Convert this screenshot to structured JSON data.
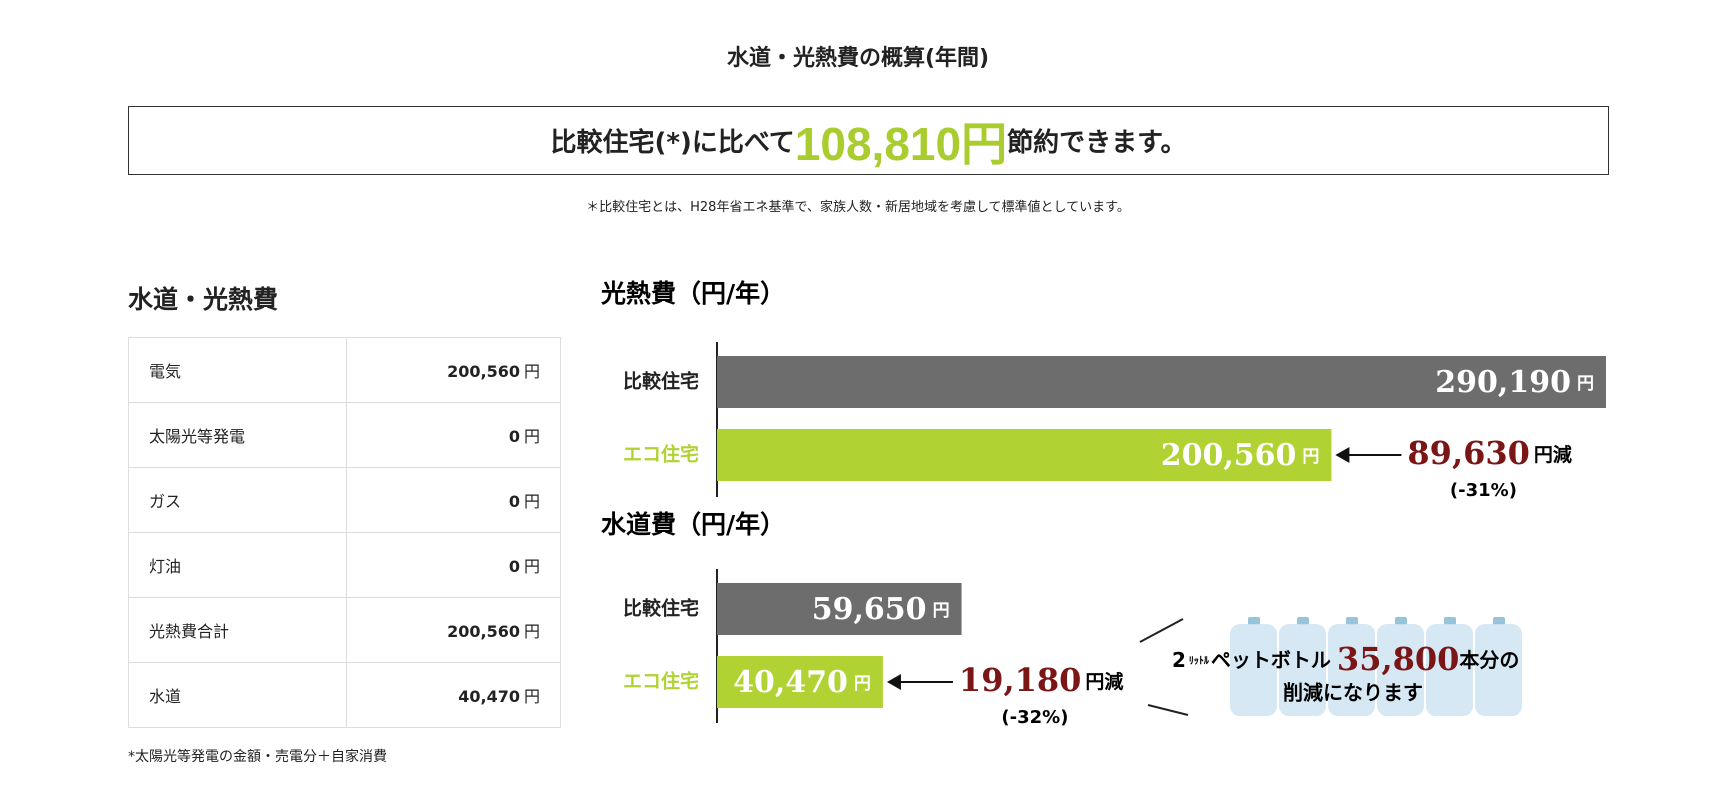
{
  "header": {
    "title": "水道・光熱費の概算(年間)",
    "headline": {
      "before": "比較住宅(*)に比べて",
      "amount": "108,810円",
      "after": "節約できます。"
    },
    "note": "＊比較住宅とは、H28年省エネ基準で、家族人数・新居地域を考慮して標準値としています。"
  },
  "table": {
    "title": "水道・光熱費",
    "unit": "円",
    "rows": [
      [
        "電気",
        "200,560"
      ],
      [
        "太陽光等発電",
        "0"
      ],
      [
        "ガス",
        "0"
      ],
      [
        "灯油",
        "0"
      ],
      [
        "光熱費合計",
        "200,560"
      ],
      [
        "水道",
        "40,470"
      ]
    ],
    "footnote": "*太陽光等発電の金額・売電分＋自家消費"
  },
  "charts": [
    {
      "type": "bar",
      "title": "光熱費（円/年）",
      "categories": [
        "比較住宅",
        "エコ住宅"
      ],
      "values": [
        290190,
        200560
      ],
      "value_labels": [
        "290,190",
        "200,560"
      ],
      "colors": [
        "#6d6d6d",
        "#b0d232"
      ],
      "unit": "円",
      "xlim": [
        0,
        290190
      ],
      "saving": {
        "amount": "89,630",
        "unit": "円減",
        "percent": "(-31%)"
      }
    },
    {
      "type": "bar",
      "title": "水道費（円/年）",
      "categories": [
        "比較住宅",
        "エコ住宅"
      ],
      "values": [
        59650,
        40470
      ],
      "value_labels": [
        "59,650",
        "40,470"
      ],
      "colors": [
        "#6d6d6d",
        "#b0d232"
      ],
      "unit": "円",
      "xlim": [
        0,
        60000
      ],
      "saving": {
        "amount": "19,180",
        "unit": "円減",
        "percent": "(-32%)"
      }
    }
  ],
  "bottles": {
    "size": "2",
    "size_unit": "ﾘｯﾄﾙ",
    "item": "ペットボトル",
    "count": "35,800",
    "count_unit": "本分の",
    "line2": "削減になります"
  }
}
